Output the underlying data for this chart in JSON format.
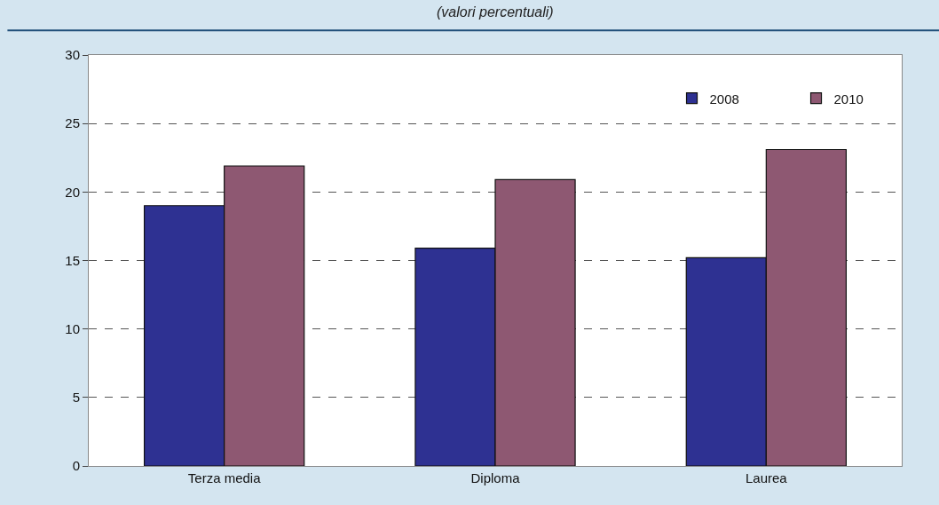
{
  "chart_data": {
    "type": "bar",
    "subtitle": "(valori percentuali)",
    "categories": [
      "Terza media",
      "Diploma",
      "Laurea"
    ],
    "series": [
      {
        "name": "2008",
        "color": "#2e3192",
        "values": [
          19.0,
          15.9,
          15.2
        ]
      },
      {
        "name": "2010",
        "color": "#8e5872",
        "values": [
          21.9,
          20.9,
          23.1
        ]
      }
    ],
    "ylim": [
      0,
      30
    ],
    "yticks": [
      0,
      5,
      10,
      15,
      20,
      25,
      30
    ],
    "grid": "y",
    "legend": "top right"
  }
}
